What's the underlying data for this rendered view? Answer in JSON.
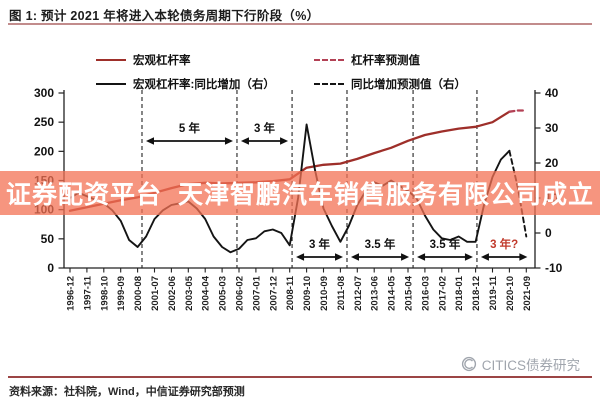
{
  "figure": {
    "title": "图 1: 预计 2021 年将进入本轮债务周期下行阶段（%）",
    "source": "资料来源：社科院，Wind，中信证券研究部预测",
    "brand_watermark": "CITICS债券研究",
    "overlay_watermark": "证券配资平台  天津智鹏汽车销售服务有限公司成立",
    "colors": {
      "leverage_red": "#9e2f2a",
      "forecast_red": "#b34155",
      "series_black": "#141414",
      "watermark_band": "rgba(243,114,84,0.75)",
      "title_rule": "#c28c8c",
      "footer_rule": "#9c4545",
      "brand_gray": "#9ba1a9",
      "annotation_red": "#c0392b"
    }
  },
  "legend": [
    {
      "label": "宏观杠杆率",
      "style": "solid",
      "color": "#9e2f2a"
    },
    {
      "label": "杠杆率预测值",
      "style": "dashed",
      "color": "#b34155"
    },
    {
      "label": "宏观杠杆率:同比增加（右）",
      "style": "solid",
      "color": "#141414"
    },
    {
      "label": "同比增加预测值（右）",
      "style": "dashed",
      "color": "#141414"
    }
  ],
  "chart_data": {
    "type": "line",
    "title": "预计 2021 年将进入本轮债务周期下行阶段（%）",
    "x_tick_labels": [
      "1996-12",
      "1997-11",
      "1998-10",
      "1999-09",
      "2000-08",
      "2001-07",
      "2002-06",
      "2003-05",
      "2004-04",
      "2005-03",
      "2006-02",
      "2007-01",
      "2007-12",
      "2008-11",
      "2009-10",
      "2010-09",
      "2011-08",
      "2012-07",
      "2013-06",
      "2014-05",
      "2015-04",
      "2016-03",
      "2017-02",
      "2018-01",
      "2018-12",
      "2019-11",
      "2020-10",
      "2021-09"
    ],
    "left_axis": {
      "range": [
        0,
        300
      ],
      "ticks": [
        300,
        250,
        200,
        150,
        100,
        50,
        0
      ]
    },
    "right_axis": {
      "range": [
        -10,
        40
      ],
      "ticks": [
        40,
        30,
        20,
        10,
        0,
        -10
      ]
    },
    "grid": false,
    "legend_position": "top",
    "series": [
      {
        "id": "leverage",
        "name": "宏观杠杆率",
        "axis": "left",
        "style": "solid",
        "color": "#9e2f2a",
        "width": 2.3,
        "start": 0,
        "step": 1,
        "values": [
          98,
          104,
          110,
          116,
          121,
          129,
          137,
          144,
          146,
          145,
          146,
          147,
          149,
          152,
          172,
          177,
          179,
          187,
          197,
          206,
          218,
          228,
          234,
          239,
          242,
          250,
          268
        ]
      },
      {
        "id": "leverage-forecast",
        "name": "杠杆率预测值",
        "axis": "left",
        "style": "dashed",
        "color": "#b34155",
        "width": 2.3,
        "start": 26,
        "step": 0.5,
        "values": [
          268,
          270,
          270
        ]
      },
      {
        "id": "yoy",
        "name": "宏观杠杆率:同比增加（右）",
        "axis": "right",
        "style": "solid",
        "color": "#141414",
        "width": 1.9,
        "start": 0,
        "step": 0.5,
        "values": [
          10,
          11.5,
          10.5,
          9.5,
          8.5,
          6.5,
          3.5,
          -2,
          -4,
          -1,
          4,
          6.5,
          8,
          8.5,
          9,
          7,
          4,
          -1,
          -4,
          -5.5,
          -4.5,
          -2,
          -1.5,
          0.5,
          1,
          0,
          -3.5,
          10,
          31,
          18,
          7,
          2,
          -2.5,
          2,
          8,
          12,
          14.5,
          13.5,
          15,
          13.5,
          12,
          10,
          5,
          1,
          -1.5,
          -2,
          -1,
          -2.5,
          -2.5,
          8,
          16,
          21,
          23.5
        ]
      },
      {
        "id": "yoy-forecast",
        "name": "同比增加预测值（右）",
        "axis": "right",
        "style": "dashed",
        "color": "#141414",
        "width": 1.9,
        "start": 26,
        "step": 0.5,
        "values": [
          23.5,
          13,
          -1
        ]
      }
    ],
    "cycle_markers": {
      "vlines_ticks": [
        4.26,
        9.88,
        13.14,
        16.39,
        20.3,
        24.08
      ],
      "spans": [
        {
          "from": 4.26,
          "to": 9.88,
          "label": "5 年",
          "pos": "top",
          "label_color": "#111111"
        },
        {
          "from": 9.88,
          "to": 13.14,
          "label": "3 年",
          "pos": "top",
          "label_color": "#111111"
        },
        {
          "from": 13.14,
          "to": 16.39,
          "label": "3 年",
          "pos": "bottom",
          "label_color": "#111111"
        },
        {
          "from": 16.39,
          "to": 20.3,
          "label": "3.5 年",
          "pos": "bottom",
          "label_color": "#111111"
        },
        {
          "from": 20.3,
          "to": 24.08,
          "label": "3.5 年",
          "pos": "bottom",
          "label_color": "#111111"
        },
        {
          "from": 24.08,
          "to": 27.3,
          "label": "3 年?",
          "pos": "bottom",
          "label_color": "#c0392b"
        }
      ]
    }
  }
}
